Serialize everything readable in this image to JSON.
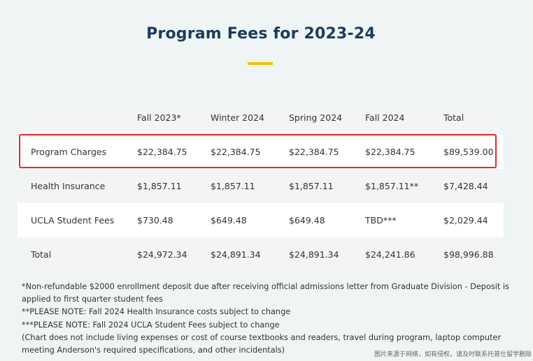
{
  "title": "Program Fees for 2023-24",
  "table": {
    "headers": [
      "",
      "Fall 2023*",
      "Winter 2024",
      "Spring 2024",
      "Fall 2024",
      "Total"
    ],
    "rows": [
      [
        "Program Charges",
        "$22,384.75",
        "$22,384.75",
        "$22,384.75",
        "$22,384.75",
        "$89,539.00"
      ],
      [
        "Health Insurance",
        "$1,857.11",
        "$1,857.11",
        "$1,857.11",
        "$1,857.11**",
        "$7,428.44"
      ],
      [
        "UCLA Student Fees",
        "$730.48",
        "$649.48",
        "$649.48",
        "TBD***",
        "$2,029.44"
      ],
      [
        "Total",
        "$24,972.34",
        "$24,891.34",
        "$24,891.34",
        "$24,241.86",
        "$98,996.88"
      ]
    ]
  },
  "notes": [
    "*Non-refundable $2000 enrollment deposit due after receiving official admissions letter from Graduate Division - Deposit is applied to first quarter student fees",
    "**PLEASE NOTE: Fall 2024 Health Insurance costs subject to change",
    "***PLEASE NOTE: Fall 2024 UCLA Student Fees subject to change",
    "(Chart does not include living expenses or cost of course textbooks and readers, travel during program, laptop computer meeting Anderson's required specifications, and other incidentals)"
  ],
  "watermark": "图片来源于网络，如有侵权，请及时联系托普仕留学删除",
  "colors": {
    "background": "#eef5f4",
    "title": "#1d3c5a",
    "accent_bar": "#f2c200",
    "highlight_border": "#e3262a"
  }
}
